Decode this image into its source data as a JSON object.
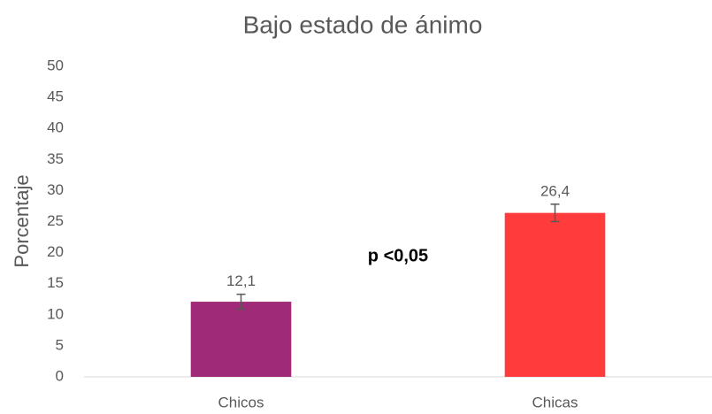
{
  "chart_data": {
    "type": "bar",
    "title": "Bajo estado de ánimo",
    "y_label": "Porcentaje",
    "categories": [
      "Chicos",
      "Chicas"
    ],
    "values": [
      12.1,
      26.4
    ],
    "value_labels": [
      "12,1",
      "26,4"
    ],
    "errors": [
      1.2,
      1.4
    ],
    "colors": [
      "#9e2a78",
      "#ff3b3b"
    ],
    "annotation": "p <0,05",
    "ylim": [
      0,
      50
    ],
    "yticks": [
      0,
      5,
      10,
      15,
      20,
      25,
      30,
      35,
      40,
      45,
      50
    ],
    "grid": false
  }
}
